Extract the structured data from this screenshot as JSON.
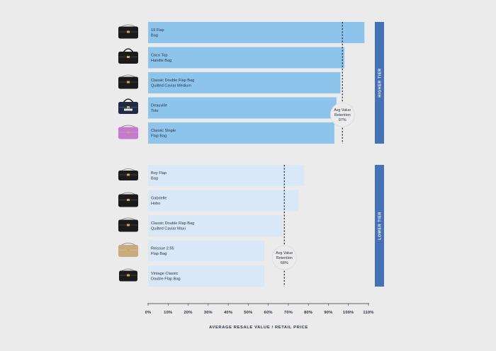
{
  "chart_data": {
    "type": "bar",
    "orientation": "horizontal",
    "xlabel": "AVERAGE RESALE VALUE / RETAIL PRICE",
    "xlim": [
      0,
      110
    ],
    "xticks": [
      "0%",
      "10%",
      "20%",
      "30%",
      "40%",
      "50%",
      "60%",
      "70%",
      "80%",
      "90%",
      "100%",
      "110%"
    ],
    "grid": false,
    "groups": [
      {
        "tier": "HIGHER TIER",
        "color": "#8cc4eb",
        "avg_value": 97,
        "avg_label": [
          "Avg Value",
          "Retention",
          "97%"
        ],
        "bars": [
          {
            "label": [
              "19 Flap",
              "Bag"
            ],
            "value": 108,
            "icon": "flap-bag-icon"
          },
          {
            "label": [
              "Coco Top",
              "Handle Bag"
            ],
            "value": 98,
            "icon": "top-handle-bag-icon"
          },
          {
            "label": [
              "Classic Double Flap Bag",
              "Quilted Caviar Medium"
            ],
            "value": 96,
            "icon": "quilted-flap-bag-icon"
          },
          {
            "label": [
              "Deauville",
              "Tote"
            ],
            "value": 94,
            "icon": "tote-bag-icon"
          },
          {
            "label": [
              "Classic Single",
              "Flap Bag"
            ],
            "value": 93,
            "icon": "pink-flap-bag-icon"
          }
        ]
      },
      {
        "tier": "LOWER TIER",
        "color": "#d8e8f6",
        "avg_value": 68,
        "avg_label": [
          "Avg Value",
          "Retention",
          "68%"
        ],
        "bars": [
          {
            "label": [
              "Boy Flap",
              "Bag"
            ],
            "value": 78,
            "icon": "boy-bag-icon"
          },
          {
            "label": [
              "Gabrielle",
              "Hobo"
            ],
            "value": 75,
            "icon": "hobo-bag-icon"
          },
          {
            "label": [
              "Classic Double Flap Bag",
              "Quilted Caviar Maxi"
            ],
            "value": 67,
            "icon": "quilted-flap-bag-icon"
          },
          {
            "label": [
              "Reissue 2.55",
              "Flap Bag"
            ],
            "value": 58,
            "icon": "beige-flap-bag-icon"
          },
          {
            "label": [
              "Vintage Classic",
              "Double Flap Bag"
            ],
            "value": 58,
            "icon": "vintage-flap-bag-icon"
          }
        ]
      }
    ],
    "tier_color": "#4471b8"
  }
}
